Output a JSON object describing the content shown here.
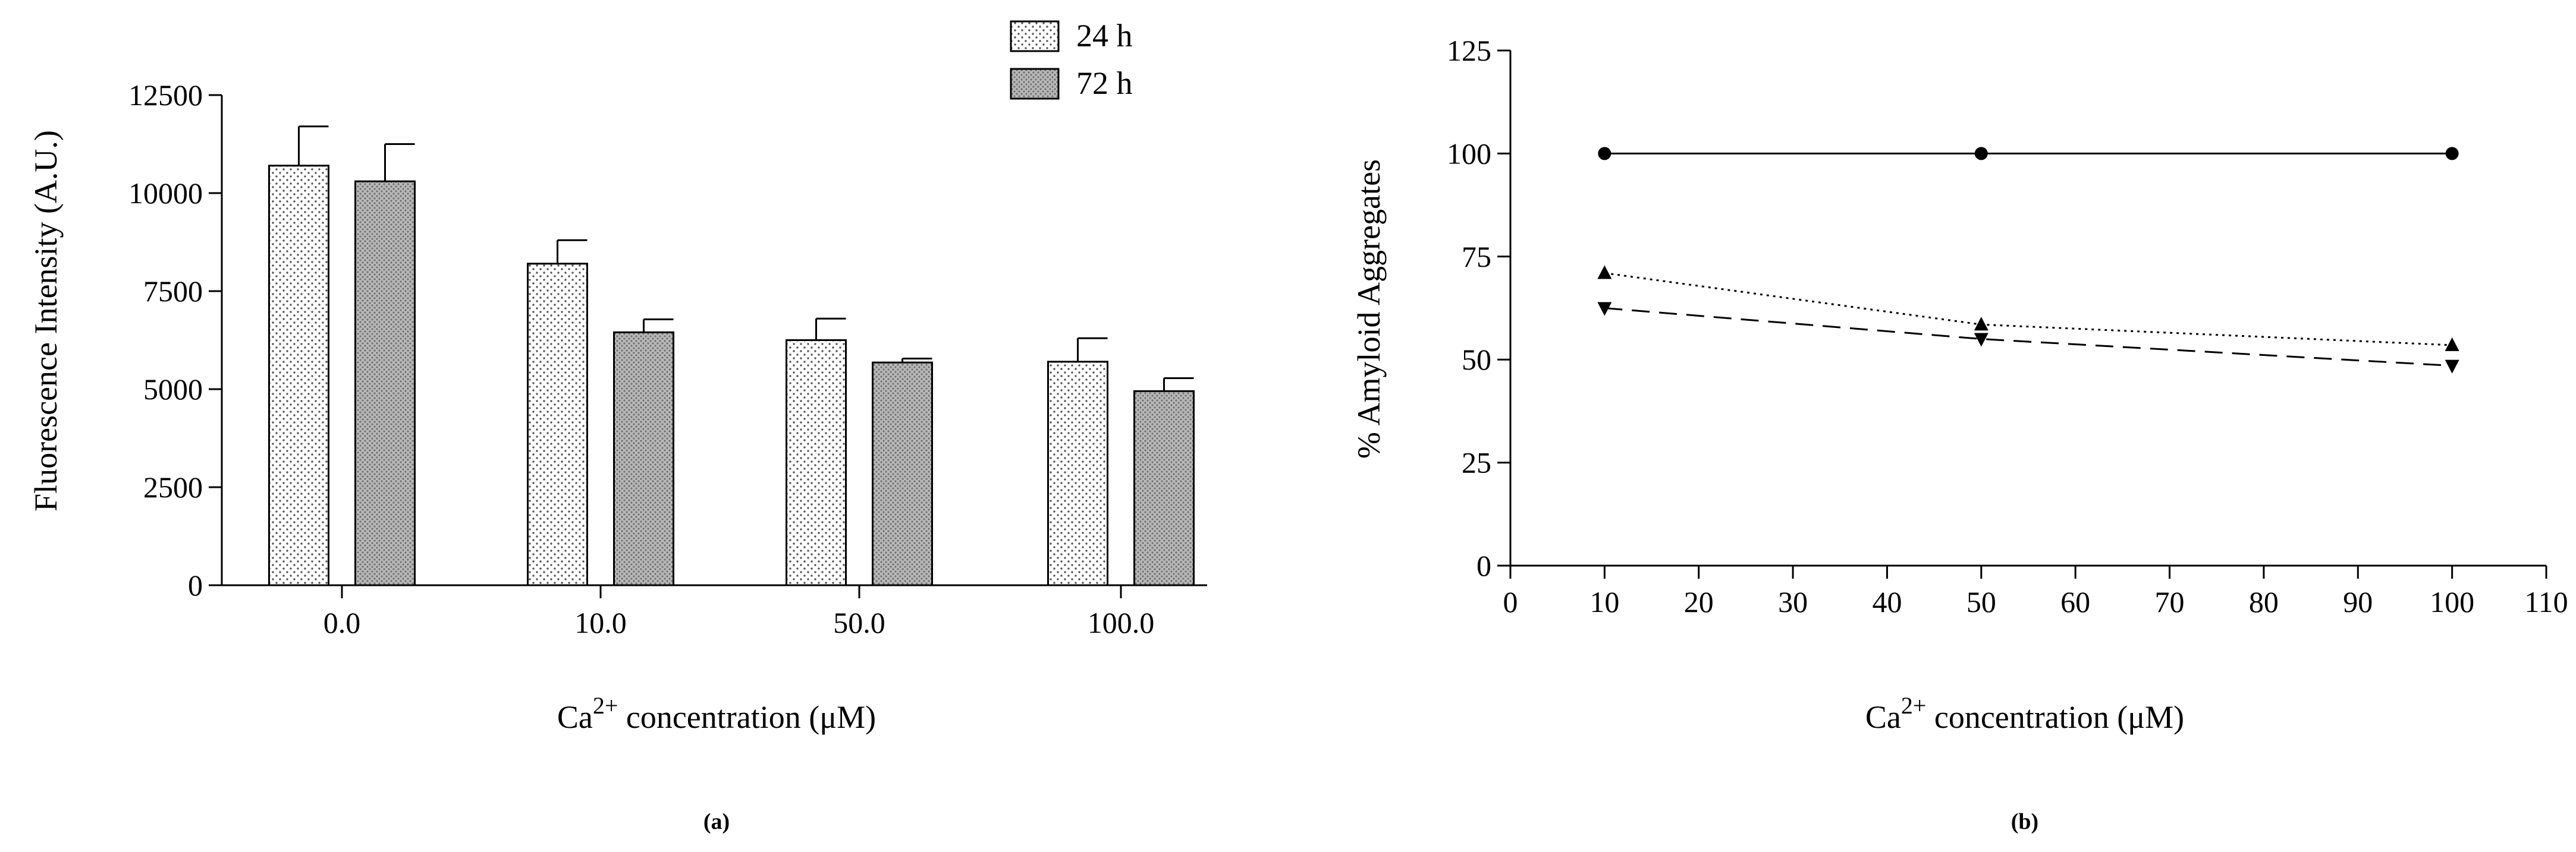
{
  "chart_data": [
    {
      "type": "bar",
      "panel_label": "(a)",
      "categories": [
        "0.0",
        "10.0",
        "50.0",
        "100.0"
      ],
      "series": [
        {
          "name": "24 h",
          "pattern": "dotted",
          "values": [
            10700,
            8200,
            6250,
            5700
          ],
          "errors": [
            1000,
            600,
            550,
            600
          ]
        },
        {
          "name": "72 h",
          "pattern": "dense-dotted",
          "values": [
            10300,
            6450,
            5680,
            4950
          ],
          "errors": [
            950,
            330,
            100,
            330
          ]
        }
      ],
      "ylabel": "Fluorescence Intensity (A.U.)",
      "xlabel_parts": {
        "base": "Ca",
        "sup": "2+",
        "rest": " concentration (μM)"
      },
      "ylim": [
        0,
        12500
      ],
      "yticks": [
        0,
        2500,
        5000,
        7500,
        10000,
        12500
      ],
      "legend_position": "top-right"
    },
    {
      "type": "line",
      "panel_label": "(b)",
      "series": [
        {
          "name": "circle",
          "marker": "circle",
          "linestyle": "solid",
          "x": [
            10,
            50,
            100
          ],
          "y": [
            100,
            100,
            100
          ]
        },
        {
          "name": "triangle-up",
          "marker": "triangle-up",
          "linestyle": "dotted",
          "x": [
            10,
            50,
            100
          ],
          "y": [
            71,
            58.5,
            53.5
          ]
        },
        {
          "name": "triangle-down",
          "marker": "triangle-down",
          "linestyle": "dashed",
          "x": [
            10,
            50,
            100
          ],
          "y": [
            62.5,
            55,
            48.5
          ]
        }
      ],
      "ylabel": "% Amyloid Aggregates",
      "xlabel_parts": {
        "base": "Ca",
        "sup": "2+",
        "rest": " concentration (μM)"
      },
      "xlim": [
        0,
        110
      ],
      "ylim": [
        0,
        125
      ],
      "xticks": [
        0,
        10,
        20,
        30,
        40,
        50,
        60,
        70,
        80,
        90,
        100,
        110
      ],
      "yticks": [
        0,
        25,
        50,
        75,
        100,
        125
      ]
    }
  ]
}
